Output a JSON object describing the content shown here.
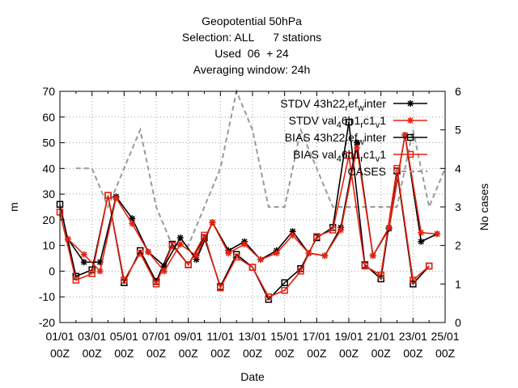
{
  "chart_data": {
    "type": "line",
    "title_lines": [
      "Geopotential 50hPa",
      "Selection: ALL      7 stations",
      "Used  06  + 24",
      "Averaging window: 24h"
    ],
    "xlabel": "Date",
    "ylabel": "m",
    "y2label": "No cases",
    "ylim": [
      -20,
      70
    ],
    "y_ticks": [
      -20,
      -10,
      0,
      10,
      20,
      30,
      40,
      50,
      60,
      70
    ],
    "y2lim": [
      0,
      6
    ],
    "y2_ticks": [
      0,
      1,
      2,
      3,
      4,
      5,
      6
    ],
    "x_ticks": [
      {
        "pos": 0,
        "line1": "01/01",
        "line2": "00Z"
      },
      {
        "pos": 2,
        "line1": "03/01",
        "line2": "00Z"
      },
      {
        "pos": 4,
        "line1": "05/01",
        "line2": "00Z"
      },
      {
        "pos": 6,
        "line1": "07/01",
        "line2": "00Z"
      },
      {
        "pos": 8,
        "line1": "09/01",
        "line2": "00Z"
      },
      {
        "pos": 10,
        "line1": "11/01",
        "line2": "00Z"
      },
      {
        "pos": 12,
        "line1": "13/01",
        "line2": "00Z"
      },
      {
        "pos": 14,
        "line1": "15/01",
        "line2": "00Z"
      },
      {
        "pos": 16,
        "line1": "17/01",
        "line2": "00Z"
      },
      {
        "pos": 18,
        "line1": "19/01",
        "line2": "00Z"
      },
      {
        "pos": 20,
        "line1": "21/01",
        "line2": "00Z"
      },
      {
        "pos": 22,
        "line1": "23/01",
        "line2": "00Z"
      },
      {
        "pos": 24,
        "line1": "25/01",
        "line2": "00Z"
      }
    ],
    "xlim": [
      0,
      24
    ],
    "grid": true,
    "legend_position": "top-right",
    "series": [
      {
        "name": "STDV 43h22_r ef_w inter",
        "legend": {
          "parts": [
            [
              "STDV 43h22",
              "n"
            ],
            [
              "r",
              "sub"
            ],
            [
              "ef",
              "n"
            ],
            [
              "w",
              "sub"
            ],
            [
              "inter",
              "n"
            ]
          ]
        },
        "color": "#000000",
        "marker": "star",
        "dash": false,
        "x": [
          0.5,
          1.5,
          2.5,
          3.5,
          4.5,
          5.5,
          6.5,
          7.5,
          8.5,
          9.5,
          10.5,
          11.5,
          12.5,
          13.5,
          14.5,
          15.5,
          16.5,
          17.5,
          18.5,
          19.5,
          20.5,
          21.5,
          22.5,
          23.5
        ],
        "values": [
          12.5,
          3.5,
          3.5,
          29,
          20.5,
          7.5,
          2,
          13,
          4.5,
          19,
          8,
          11.5,
          4.5,
          8,
          15.5,
          7,
          6,
          17,
          50,
          6,
          16.5,
          53,
          11.5,
          14.5
        ]
      },
      {
        "name": "STDV val_4 6h1_r c1_v 1",
        "legend": {
          "parts": [
            [
              "STDV val",
              "n"
            ],
            [
              "4",
              "sub"
            ],
            [
              "6h1",
              "n"
            ],
            [
              "r",
              "sub"
            ],
            [
              "c1",
              "n"
            ],
            [
              "v",
              "sub"
            ],
            [
              "1",
              "n"
            ]
          ]
        },
        "color": "#e8200e",
        "marker": "star",
        "dash": false,
        "x": [
          0.5,
          1.5,
          2.5,
          3.5,
          4.5,
          5.5,
          6.5,
          7.5,
          8.5,
          9.5,
          10.5,
          11.5,
          12.5,
          13.5,
          14.5,
          15.5,
          16.5,
          17.5,
          18.5,
          19.5,
          20.5,
          21.5,
          22.5,
          23.5
        ],
        "values": [
          12.5,
          6.5,
          0,
          28.5,
          18.5,
          7.5,
          0,
          10.5,
          6,
          19,
          7,
          10.5,
          4.5,
          7,
          14,
          7,
          6,
          16,
          48,
          6,
          17,
          53,
          15,
          14.5
        ]
      },
      {
        "name": "BIAS 43h22_r ef_w inter",
        "legend": {
          "parts": [
            [
              "BIAS 43h22",
              "n"
            ],
            [
              "r",
              "sub"
            ],
            [
              "ef",
              "n"
            ],
            [
              "w",
              "sub"
            ],
            [
              "inter",
              "n"
            ]
          ]
        },
        "color": "#000000",
        "marker": "square",
        "dash": false,
        "x": [
          0,
          1,
          2,
          3,
          4,
          5,
          6,
          7,
          8,
          9,
          10,
          11,
          12,
          13,
          14,
          15,
          16,
          17,
          18,
          19,
          20,
          21,
          22,
          23,
          24
        ],
        "values": [
          26,
          -2,
          0.5,
          29.5,
          -4.5,
          8,
          -4,
          10.5,
          2.5,
          13,
          -6,
          6.5,
          1.5,
          -11,
          -4.5,
          1,
          13,
          17,
          58,
          2.5,
          -3,
          39,
          -5,
          2,
          null
        ]
      },
      {
        "name": "BIAS val_4 6h1_r c1_v 1",
        "legend": {
          "parts": [
            [
              "BIAS val",
              "n"
            ],
            [
              "4",
              "sub"
            ],
            [
              "6h1",
              "n"
            ],
            [
              "r",
              "sub"
            ],
            [
              "c1",
              "n"
            ],
            [
              "v",
              "sub"
            ],
            [
              "1",
              "n"
            ]
          ]
        },
        "color": "#e8200e",
        "marker": "square",
        "dash": false,
        "x": [
          0,
          1,
          2,
          3,
          4,
          5,
          6,
          7,
          8,
          9,
          10,
          11,
          12,
          13,
          14,
          15,
          16,
          17,
          18,
          19,
          20,
          21,
          22,
          23,
          24
        ],
        "values": [
          23,
          -3.5,
          -1,
          29.5,
          -3.5,
          7,
          -5,
          10,
          2.5,
          14,
          -6.5,
          5.5,
          1.5,
          -10,
          -7.5,
          0,
          13.5,
          16,
          45,
          2,
          -1.5,
          40,
          -3.5,
          2,
          null
        ]
      },
      {
        "name": "CASES",
        "legend": {
          "parts": [
            [
              "CASES",
              "n"
            ]
          ]
        },
        "color": "#9a9a9a",
        "marker": "none",
        "dash": true,
        "axis": "y2",
        "x": [
          1,
          2,
          3,
          4,
          5,
          6,
          7,
          8,
          9,
          10,
          11,
          12,
          13,
          14,
          15,
          16,
          17,
          18,
          19,
          20,
          21,
          22,
          23,
          24
        ],
        "values": [
          4,
          4,
          3,
          4,
          5,
          3,
          2,
          2,
          3,
          4,
          6,
          5,
          3,
          3,
          5,
          4,
          3,
          3,
          3,
          3,
          3,
          5,
          3,
          4
        ]
      }
    ]
  }
}
